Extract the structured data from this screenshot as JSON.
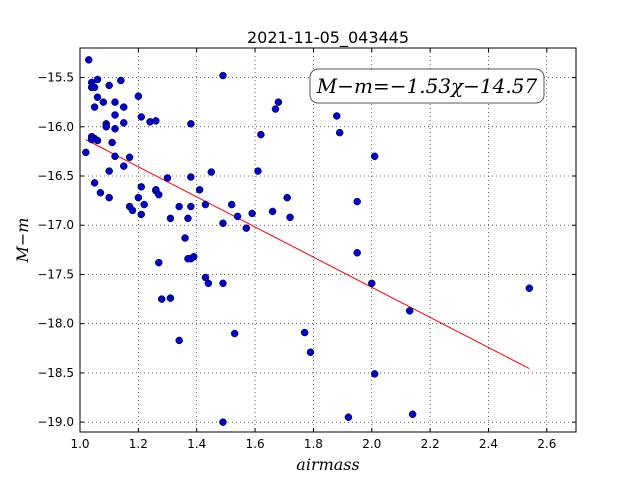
{
  "chart_data": {
    "type": "scatter",
    "title": "2021-11-05_043445",
    "xlabel": "airmass",
    "ylabel": "M−m",
    "xlim": [
      1.0,
      2.7
    ],
    "ylim": [
      -15.2,
      -19.1
    ],
    "y_inverted": true,
    "grid": true,
    "xticks": [
      1.0,
      1.2,
      1.4,
      1.6,
      1.8,
      2.0,
      2.2,
      2.4,
      2.6
    ],
    "xtick_labels": [
      "1.0",
      "1.2",
      "1.4",
      "1.6",
      "1.8",
      "2.0",
      "2.2",
      "2.4",
      "2.6"
    ],
    "yticks": [
      -15.5,
      -16.0,
      -16.5,
      -17.0,
      -17.5,
      -18.0,
      -18.5,
      -19.0
    ],
    "ytick_labels": [
      "−15.5",
      "−16.0",
      "−16.5",
      "−17.0",
      "−17.5",
      "−18.0",
      "−18.5",
      "−19.0"
    ],
    "annotation": "M−m=−1.53χ−14.57",
    "fit": {
      "slope": -1.53,
      "intercept": -14.57,
      "x_range": [
        1.02,
        2.54
      ],
      "color": "#ff0000"
    },
    "marker_color": "#0000cc",
    "points": [
      [
        1.03,
        -15.32
      ],
      [
        1.04,
        -15.55
      ],
      [
        1.04,
        -15.6
      ],
      [
        1.06,
        -15.52
      ],
      [
        1.05,
        -15.6
      ],
      [
        1.06,
        -15.7
      ],
      [
        1.05,
        -15.8
      ],
      [
        1.08,
        -15.75
      ],
      [
        1.1,
        -15.58
      ],
      [
        1.12,
        -15.75
      ],
      [
        1.14,
        -15.53
      ],
      [
        1.12,
        -15.88
      ],
      [
        1.15,
        -15.8
      ],
      [
        1.2,
        -15.69
      ],
      [
        1.15,
        -15.96
      ],
      [
        1.09,
        -15.97
      ],
      [
        1.09,
        -16.0
      ],
      [
        1.12,
        -16.02
      ],
      [
        1.21,
        -15.9
      ],
      [
        1.24,
        -15.95
      ],
      [
        1.26,
        -15.94
      ],
      [
        1.04,
        -16.1
      ],
      [
        1.05,
        -16.12
      ],
      [
        1.04,
        -16.13
      ],
      [
        1.06,
        -16.14
      ],
      [
        1.02,
        -16.26
      ],
      [
        1.11,
        -16.16
      ],
      [
        1.12,
        -16.3
      ],
      [
        1.17,
        -16.31
      ],
      [
        1.15,
        -16.4
      ],
      [
        1.1,
        -16.45
      ],
      [
        1.05,
        -16.57
      ],
      [
        1.07,
        -16.67
      ],
      [
        1.1,
        -16.72
      ],
      [
        1.21,
        -16.61
      ],
      [
        1.2,
        -16.72
      ],
      [
        1.22,
        -16.79
      ],
      [
        1.17,
        -16.81
      ],
      [
        1.18,
        -16.85
      ],
      [
        1.21,
        -16.89
      ],
      [
        1.26,
        -16.65
      ],
      [
        1.26,
        -16.64
      ],
      [
        1.27,
        -16.69
      ],
      [
        1.3,
        -16.52
      ],
      [
        1.38,
        -15.97
      ],
      [
        1.38,
        -16.51
      ],
      [
        1.41,
        -16.64
      ],
      [
        1.45,
        -16.46
      ],
      [
        1.49,
        -15.48
      ],
      [
        1.34,
        -16.81
      ],
      [
        1.38,
        -16.81
      ],
      [
        1.43,
        -16.79
      ],
      [
        1.31,
        -16.93
      ],
      [
        1.37,
        -16.93
      ],
      [
        1.49,
        -16.98
      ],
      [
        1.36,
        -17.13
      ],
      [
        1.38,
        -17.34
      ],
      [
        1.39,
        -17.32
      ],
      [
        1.37,
        -17.34
      ],
      [
        1.27,
        -17.38
      ],
      [
        1.43,
        -17.53
      ],
      [
        1.44,
        -17.59
      ],
      [
        1.49,
        -17.59
      ],
      [
        1.28,
        -17.75
      ],
      [
        1.31,
        -17.74
      ],
      [
        1.34,
        -18.17
      ],
      [
        1.53,
        -18.1
      ],
      [
        1.52,
        -16.79
      ],
      [
        1.54,
        -16.91
      ],
      [
        1.57,
        -17.03
      ],
      [
        1.59,
        -16.88
      ],
      [
        1.61,
        -16.45
      ],
      [
        1.62,
        -16.08
      ],
      [
        1.66,
        -16.86
      ],
      [
        1.67,
        -15.82
      ],
      [
        1.68,
        -15.75
      ],
      [
        1.71,
        -16.72
      ],
      [
        1.72,
        -16.92
      ],
      [
        1.77,
        -18.09
      ],
      [
        1.79,
        -18.29
      ],
      [
        1.88,
        -15.89
      ],
      [
        1.89,
        -16.06
      ],
      [
        1.95,
        -16.76
      ],
      [
        1.95,
        -17.28
      ],
      [
        2.0,
        -17.59
      ],
      [
        2.01,
        -16.3
      ],
      [
        2.01,
        -18.51
      ],
      [
        1.92,
        -18.95
      ],
      [
        2.13,
        -17.87
      ],
      [
        2.14,
        -18.92
      ],
      [
        1.49,
        -19.0
      ],
      [
        2.54,
        -17.64
      ]
    ]
  }
}
